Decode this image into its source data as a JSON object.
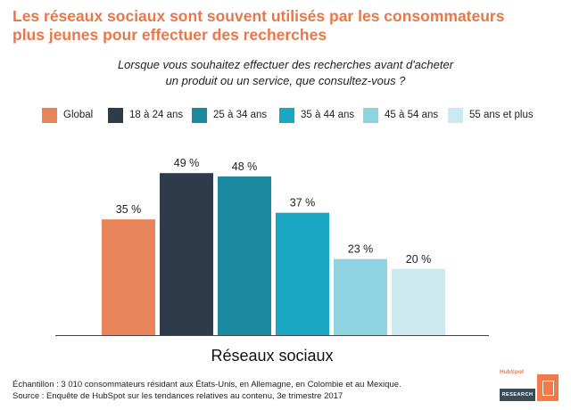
{
  "title_lines": [
    "Les réseaux sociaux sont souvent utilisés par les consommateurs",
    "plus jeunes pour effectuer des recherches"
  ],
  "subtitle_lines": [
    "Lorsque vous souhaitez effectuer des recherches avant d'acheter",
    "un produit ou un service, que consultez-vous ?"
  ],
  "footnote": {
    "line1": "Échantillon : 3 010 consommateurs résidant aux États-Unis, en Allemagne, en Colombie et au Mexique.",
    "line2": "Source : Enquête de HubSpot sur les tendances relatives au contenu, 3e trimestre 2017"
  },
  "logo": {
    "brand": "HubSpot",
    "subtitle": "RESEARCH"
  },
  "chart_data": {
    "type": "bar",
    "title": "",
    "xlabel": "",
    "ylabel": "",
    "categories": [
      "Réseaux sociaux"
    ],
    "value_unit": "%",
    "ylim": [
      0,
      55
    ],
    "grid": false,
    "legend_position": "top",
    "series": [
      {
        "name": "Global",
        "values": [
          35
        ],
        "label": "35 %",
        "color": "#e8845a"
      },
      {
        "name": "18 à 24 ans",
        "values": [
          49
        ],
        "label": "49 %",
        "color": "#2d3b4b"
      },
      {
        "name": "25 à 34 ans",
        "values": [
          48
        ],
        "label": "48 %",
        "color": "#1b8aa0"
      },
      {
        "name": "35 à 44 ans",
        "values": [
          37
        ],
        "label": "37 %",
        "color": "#1aa7c3"
      },
      {
        "name": "45 à 54 ans",
        "values": [
          23
        ],
        "label": "23 %",
        "color": "#8dd4e0"
      },
      {
        "name": "55 ans et plus",
        "values": [
          20
        ],
        "label": "20 %",
        "color": "#cbe9ef"
      }
    ]
  }
}
